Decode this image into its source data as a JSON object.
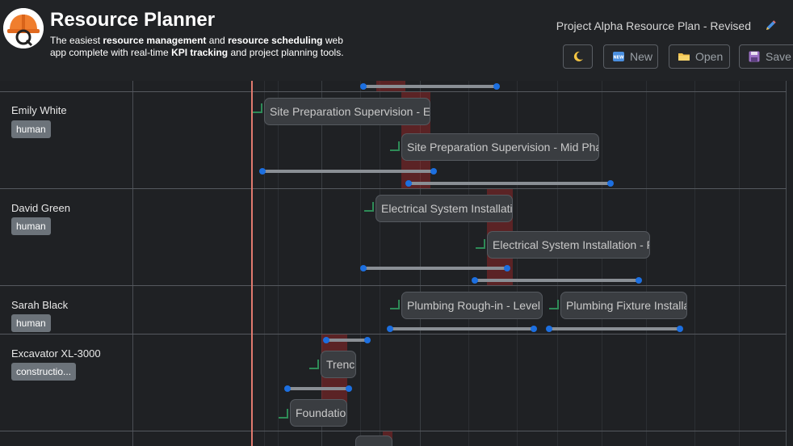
{
  "header": {
    "title": "Resource Planner",
    "tagline_parts": [
      {
        "text": "The easiest ",
        "bold": false
      },
      {
        "text": "resource management",
        "bold": true
      },
      {
        "text": " and ",
        "bold": false
      },
      {
        "text": "resource scheduling",
        "bold": true
      },
      {
        "text": " web app complete with real-time ",
        "bold": false
      },
      {
        "text": "KPI tracking",
        "bold": true
      },
      {
        "text": " and project planning tools.",
        "bold": false
      }
    ],
    "plan_name": "Project Alpha Resource Plan - Revised"
  },
  "toolbar": {
    "new_label": "New",
    "open_label": "Open",
    "save_label": "Save"
  },
  "icons": {
    "theme": "moon-icon",
    "new": "new-badge-icon",
    "open": "folder-icon",
    "save": "floppy-disk-icon",
    "edit": "pencil-icon"
  },
  "colors": {
    "today_line": "#e07a6e",
    "overload": "#8c2626",
    "range_handle": "#1c6fe0",
    "dependency": "#2e8b57"
  },
  "resources": [
    {
      "name": "Emily White",
      "type": "human"
    },
    {
      "name": "David Green",
      "type": "human"
    },
    {
      "name": "Sarah Black",
      "type": "human"
    },
    {
      "name": "Excavator XL-3000",
      "type": "constructio..."
    }
  ],
  "tasks": [
    {
      "label": "Site Preparation Supervision - Ea",
      "resource": "Emily White"
    },
    {
      "label": "Site Preparation Supervision - Mid Pha",
      "resource": "Emily White"
    },
    {
      "label": "Electrical System Installatio",
      "resource": "David Green"
    },
    {
      "label": "Electrical System Installation - P",
      "resource": "David Green"
    },
    {
      "label": "Plumbing Rough-in - Level",
      "resource": "Sarah Black"
    },
    {
      "label": "Plumbing Fixture Installa",
      "resource": "Sarah Black"
    },
    {
      "label": "Trench",
      "resource": "Excavator XL-3000"
    },
    {
      "label": "Foundatio",
      "resource": "Excavator XL-3000"
    }
  ]
}
